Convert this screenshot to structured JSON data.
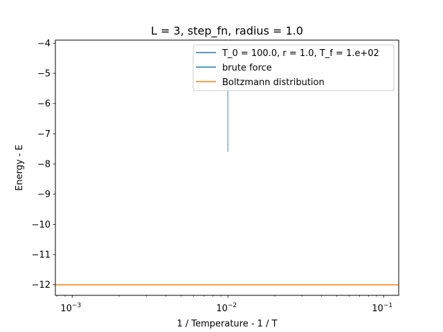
{
  "chart_data": {
    "type": "line",
    "title": "L = 3, step_fn, radius = 1.0",
    "xlabel": "1 / Temperature - 1 / T",
    "ylabel": "Energy - E",
    "x_scale": "log",
    "xlim": [
      0.00078,
      0.125
    ],
    "ylim": [
      -12.35,
      -3.9
    ],
    "grid": false,
    "legend_position": "top-right",
    "x_ticks": [
      {
        "value": 0.001,
        "base": "10",
        "exp": "−3"
      },
      {
        "value": 0.01,
        "base": "10",
        "exp": "−2"
      },
      {
        "value": 0.1,
        "base": "10",
        "exp": "−1"
      }
    ],
    "y_ticks": [
      {
        "value": -4,
        "label": "−4"
      },
      {
        "value": -5,
        "label": "−5"
      },
      {
        "value": -6,
        "label": "−6"
      },
      {
        "value": -7,
        "label": "−7"
      },
      {
        "value": -8,
        "label": "−8"
      },
      {
        "value": -9,
        "label": "−9"
      },
      {
        "value": -10,
        "label": "−10"
      },
      {
        "value": -11,
        "label": "−11"
      },
      {
        "value": -12,
        "label": "−12"
      }
    ],
    "series": [
      {
        "name": "T_0 = 100.0, r = 1.0, T_f = 1.e+02",
        "color": "#1f77b4",
        "line_opacity": 0.6,
        "x": [
          0.01,
          0.01
        ],
        "y": [
          -7.6,
          -4.1
        ]
      },
      {
        "name": "brute force",
        "color": "#1f77b4",
        "line_opacity": 1,
        "hline": -12.0
      },
      {
        "name": "Boltzmann distribution",
        "color": "#ff7f0e",
        "line_opacity": 1,
        "hline": -12.0
      }
    ]
  }
}
